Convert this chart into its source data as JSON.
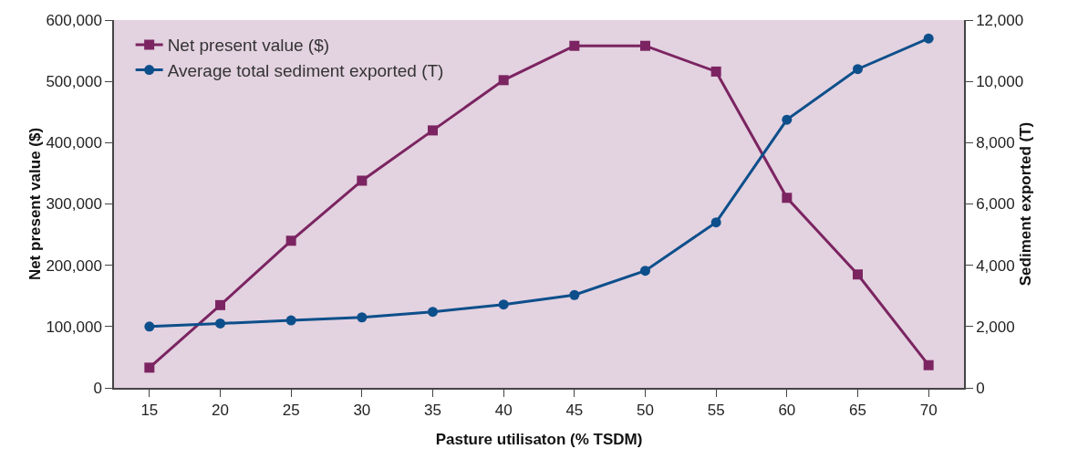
{
  "chart_data": {
    "type": "line",
    "xlabel": "Pasture utilisaton (% TSDM)",
    "ylabel": "Net present value ($)",
    "y2label": "Sediment exported (T)",
    "categories": [
      "15",
      "20",
      "25",
      "30",
      "35",
      "40",
      "45",
      "50",
      "55",
      "60",
      "65",
      "70"
    ],
    "series": [
      {
        "name": "Net present value ($)",
        "color": "#7b2461",
        "marker": "square",
        "values": [
          33000,
          135000,
          240000,
          338000,
          420000,
          502000,
          558000,
          558000,
          516000,
          310000,
          185000,
          37000
        ]
      },
      {
        "name": "Average total sediment exported (T)",
        "color": "#0d4f8b",
        "marker": "circle",
        "axis": "y2",
        "values": [
          2000,
          2100,
          2200,
          2300,
          2480,
          2720,
          3030,
          3820,
          5400,
          8750,
          10400,
          11400
        ]
      }
    ],
    "ylim": [
      0,
      600000
    ],
    "yticks": [
      0,
      {
        "value": 100000,
        "label": "100,000"
      },
      {
        "value": 200000,
        "label": "200,000"
      },
      {
        "value": 300000,
        "label": "300,000"
      },
      {
        "value": 400000,
        "label": "400,000"
      },
      {
        "value": 500000,
        "label": "500,000"
      },
      {
        "value": 600000,
        "label": "600,000"
      }
    ],
    "y2lim": [
      0,
      12000
    ],
    "y2ticks": [
      0,
      {
        "value": 2000,
        "label": "2,000"
      },
      {
        "value": 4000,
        "label": "4,000"
      },
      {
        "value": 6000,
        "label": "6,000"
      },
      {
        "value": 8000,
        "label": "8,000"
      },
      {
        "value": 10000,
        "label": "10,000"
      },
      {
        "value": 12000,
        "label": "12,000"
      }
    ],
    "grid": false,
    "legend": "top left",
    "line_style": "solid"
  }
}
